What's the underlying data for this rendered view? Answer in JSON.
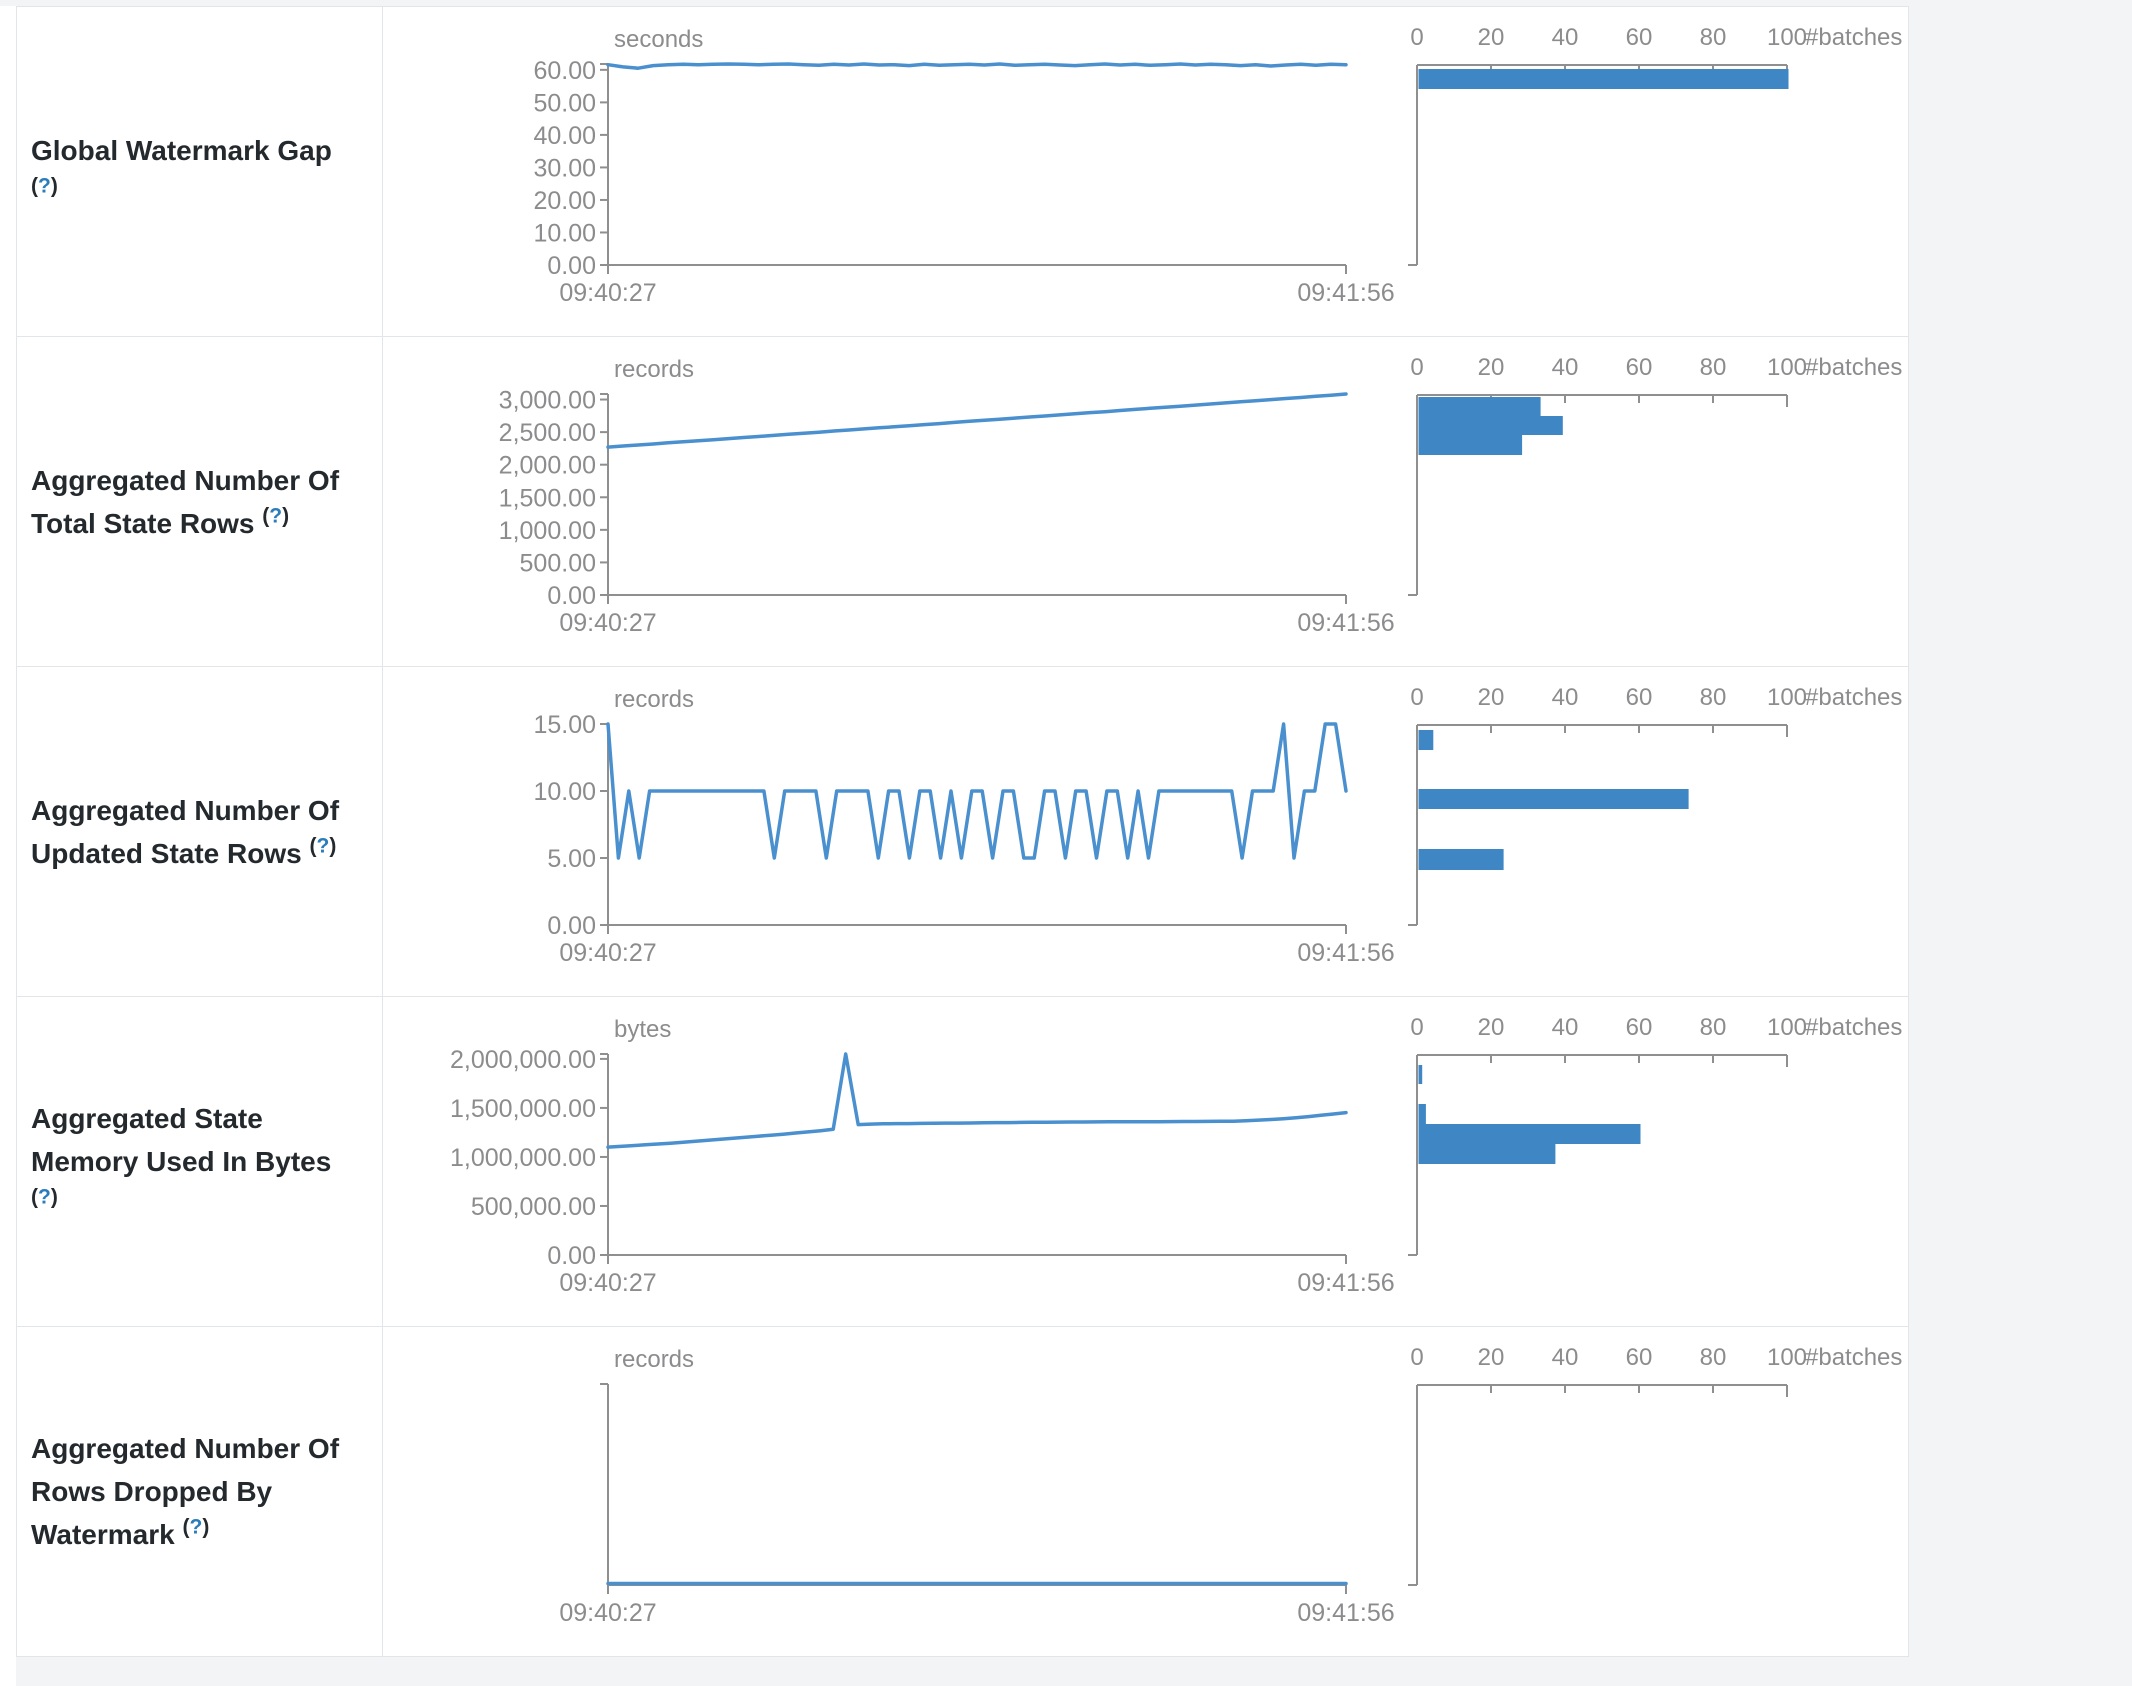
{
  "page": {
    "background": "#f3f4f6",
    "table_border": "#e2e5e9",
    "cell_background": "#ffffff"
  },
  "colors": {
    "accent_bar": "#3e86c4",
    "accent_line": "#4a90cf",
    "axis": "#8f8f8f",
    "tick_text": "#8c8c8e",
    "label_text": "#24292e",
    "help_link": "#2b7cba"
  },
  "histogram_axis": {
    "tick_labels": [
      "0",
      "20",
      "40",
      "60",
      "80",
      "100"
    ],
    "max": 100,
    "label": "#batches"
  },
  "rows": [
    {
      "id": "global-watermark-gap",
      "label": "Global Watermark Gap",
      "help": "?",
      "chart_data": {
        "type": "line",
        "unit": "seconds",
        "x_ticks": [
          "09:40:27",
          "09:41:56"
        ],
        "y_ticks": [
          {
            "v": 0,
            "label": "0.00"
          },
          {
            "v": 10,
            "label": "10.00"
          },
          {
            "v": 20,
            "label": "20.00"
          },
          {
            "v": 30,
            "label": "30.00"
          },
          {
            "v": 40,
            "label": "40.00"
          },
          {
            "v": 50,
            "label": "50.00"
          },
          {
            "v": 60,
            "label": "60.00"
          }
        ],
        "y_max": 61.8,
        "values": [
          61.6,
          60.9,
          60.5,
          61.3,
          61.6,
          61.7,
          61.6,
          61.7,
          61.8,
          61.7,
          61.6,
          61.7,
          61.8,
          61.6,
          61.4,
          61.7,
          61.5,
          61.8,
          61.5,
          61.6,
          61.3,
          61.7,
          61.4,
          61.6,
          61.7,
          61.5,
          61.8,
          61.4,
          61.6,
          61.7,
          61.5,
          61.3,
          61.6,
          61.8,
          61.5,
          61.7,
          61.4,
          61.6,
          61.8,
          61.5,
          61.7,
          61.6,
          61.3,
          61.6,
          61.2,
          61.5,
          61.7,
          61.4,
          61.7,
          61.6
        ]
      },
      "histogram_data": {
        "type": "bar",
        "x_label": "#batches",
        "bins": [
          {
            "value": "~61.5 seconds",
            "count": 100,
            "offset": 4,
            "height": 20
          }
        ]
      }
    },
    {
      "id": "aggregated-total-state-rows",
      "label": "Aggregated Number Of Total State Rows",
      "help": "?",
      "chart_data": {
        "type": "line",
        "unit": "records",
        "x_ticks": [
          "09:40:27",
          "09:41:56"
        ],
        "y_ticks": [
          {
            "v": 0,
            "label": "0.00"
          },
          {
            "v": 500,
            "label": "500.00"
          },
          {
            "v": 1000,
            "label": "1,000.00"
          },
          {
            "v": 1500,
            "label": "1,500.00"
          },
          {
            "v": 2000,
            "label": "2,000.00"
          },
          {
            "v": 2500,
            "label": "2,500.00"
          },
          {
            "v": 3000,
            "label": "3,000.00"
          }
        ],
        "y_max": 3085,
        "values": [
          2270,
          2287,
          2303,
          2318,
          2336,
          2352,
          2369,
          2383,
          2401,
          2418,
          2433,
          2450,
          2468,
          2483,
          2499,
          2517,
          2532,
          2550,
          2566,
          2581,
          2599,
          2616,
          2631,
          2649,
          2666,
          2681,
          2697,
          2715,
          2732,
          2748,
          2764,
          2781,
          2799,
          2814,
          2831,
          2849,
          2865,
          2882,
          2897,
          2914,
          2932,
          2948,
          2965,
          2981,
          2999,
          3016,
          3031,
          3049,
          3066,
          3085
        ]
      },
      "histogram_data": {
        "type": "bar",
        "x_label": "#batches",
        "bins": [
          {
            "value": "2,810 - 3,080",
            "count": 33,
            "offset": 2,
            "height": 19
          },
          {
            "value": "2,540 - 2,810",
            "count": 39,
            "offset": 21,
            "height": 19
          },
          {
            "value": "2,270 - 2,540",
            "count": 28,
            "offset": 40,
            "height": 20
          }
        ]
      }
    },
    {
      "id": "aggregated-updated-state-rows",
      "label": "Aggregated Number Of Updated State Rows",
      "help": "?",
      "chart_data": {
        "type": "line",
        "unit": "records",
        "x_ticks": [
          "09:40:27",
          "09:41:56"
        ],
        "y_ticks": [
          {
            "v": 0,
            "label": "0.00"
          },
          {
            "v": 5,
            "label": "5.00"
          },
          {
            "v": 10,
            "label": "10.00"
          },
          {
            "v": 15,
            "label": "15.00"
          }
        ],
        "y_max": 15,
        "values": [
          15,
          5,
          10,
          5,
          10,
          10,
          10,
          10,
          10,
          10,
          10,
          10,
          10,
          10,
          10,
          10,
          5,
          10,
          10,
          10,
          10,
          5,
          10,
          10,
          10,
          10,
          5,
          10,
          10,
          5,
          10,
          10,
          5,
          10,
          5,
          10,
          10,
          5,
          10,
          10,
          5,
          5,
          10,
          10,
          5,
          10,
          10,
          5,
          10,
          10,
          5,
          10,
          5,
          10,
          10,
          10,
          10,
          10,
          10,
          10,
          10,
          5,
          10,
          10,
          10,
          15,
          5,
          10,
          10,
          15,
          15,
          10
        ]
      },
      "histogram_data": {
        "type": "bar",
        "x_label": "#batches",
        "bins": [
          {
            "value": "15",
            "count": 4,
            "offset": 5,
            "height": 20
          },
          {
            "value": "10",
            "count": 73,
            "offset": 64,
            "height": 20
          },
          {
            "value": "5",
            "count": 23,
            "offset": 124,
            "height": 21
          }
        ]
      }
    },
    {
      "id": "aggregated-state-memory-used",
      "label": "Aggregated State Memory Used In Bytes",
      "help": "?",
      "chart_data": {
        "type": "line",
        "unit": "bytes",
        "x_ticks": [
          "09:40:27",
          "09:41:56"
        ],
        "y_ticks": [
          {
            "v": 0,
            "label": "0.00"
          },
          {
            "v": 500000,
            "label": "500,000.00"
          },
          {
            "v": 1000000,
            "label": "1,000,000.00"
          },
          {
            "v": 1500000,
            "label": "1,500,000.00"
          },
          {
            "v": 2000000,
            "label": "2,000,000.00"
          }
        ],
        "y_max": 2050000,
        "values": [
          1100000,
          1108000,
          1116000,
          1124000,
          1132000,
          1140000,
          1150000,
          1160000,
          1170000,
          1180000,
          1190000,
          1200000,
          1212000,
          1222000,
          1232000,
          1244000,
          1256000,
          1268000,
          1282000,
          2050000,
          1330000,
          1335000,
          1338000,
          1340000,
          1340000,
          1342000,
          1344000,
          1345000,
          1345000,
          1346000,
          1348000,
          1350000,
          1350000,
          1352000,
          1353000,
          1354000,
          1355000,
          1356000,
          1356000,
          1357000,
          1358000,
          1358000,
          1359000,
          1360000,
          1360000,
          1361000,
          1362000,
          1362000,
          1363000,
          1364000,
          1365000,
          1370000,
          1376000,
          1382000,
          1390000,
          1400000,
          1412000,
          1425000,
          1438000,
          1452000
        ]
      },
      "histogram_data": {
        "type": "bar",
        "x_label": "#batches",
        "bins": [
          {
            "value": "~2,050,000",
            "count": 1,
            "offset": 10,
            "height": 19
          },
          {
            "value": "~1,580,000",
            "count": 2,
            "offset": 49,
            "height": 20
          },
          {
            "value": "~1,340,000",
            "count": 60,
            "offset": 69,
            "height": 20
          },
          {
            "value": "~1,130,000",
            "count": 37,
            "offset": 89,
            "height": 20
          }
        ]
      }
    },
    {
      "id": "aggregated-rows-dropped-by-watermark",
      "label": "Aggregated Number Of Rows Dropped By Watermark",
      "help": "?",
      "chart_data": {
        "type": "line",
        "unit": "records",
        "x_ticks": [
          "09:40:27",
          "09:41:56"
        ],
        "y_ticks": [],
        "y_max": 1,
        "values": [
          0,
          0,
          0,
          0,
          0,
          0,
          0,
          0,
          0,
          0,
          0,
          0,
          0,
          0,
          0,
          0,
          0,
          0,
          0,
          0,
          0,
          0,
          0,
          0,
          0,
          0,
          0,
          0,
          0,
          0,
          0,
          0,
          0,
          0,
          0,
          0,
          0,
          0,
          0,
          0,
          0,
          0,
          0,
          0,
          0,
          0,
          0,
          0,
          0,
          0
        ]
      },
      "histogram_data": {
        "type": "bar",
        "x_label": "#batches",
        "bins": []
      }
    }
  ]
}
